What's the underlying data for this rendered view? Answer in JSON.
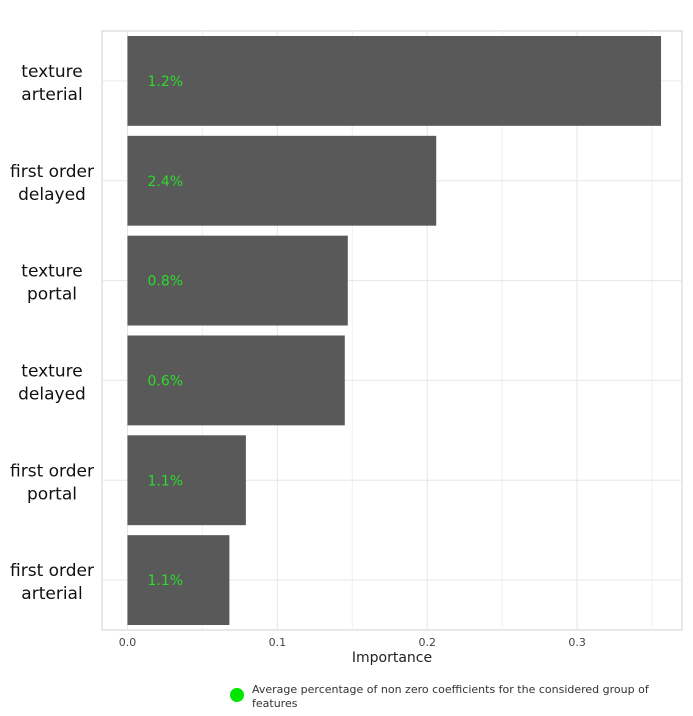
{
  "chart_data": {
    "type": "bar",
    "orientation": "horizontal",
    "categories": [
      "texture arterial",
      "first order delayed",
      "texture portal",
      "texture delayed",
      "first order portal",
      "first order arterial"
    ],
    "category_lines": [
      [
        "texture",
        "arterial"
      ],
      [
        "first order",
        "delayed"
      ],
      [
        "texture",
        "portal"
      ],
      [
        "texture",
        "delayed"
      ],
      [
        "first order",
        "portal"
      ],
      [
        "first order",
        "arterial"
      ]
    ],
    "values": [
      0.356,
      0.206,
      0.147,
      0.145,
      0.079,
      0.068
    ],
    "data_labels": [
      "1.2%",
      "2.4%",
      "0.8%",
      "0.6%",
      "1.1%",
      "1.1%"
    ],
    "xlabel": "Importance",
    "xlim": [
      -0.017,
      0.37
    ],
    "x_ticks": [
      0.0,
      0.1,
      0.2,
      0.3
    ],
    "x_tick_labels": [
      "0.0",
      "0.1",
      "0.2",
      "0.3"
    ],
    "grid": true,
    "legend": {
      "text": "Average percentage of non zero coefficients for the considered group of features",
      "placement": "bottom"
    },
    "colors": {
      "bar": "#595959",
      "label": "#2bdc2b",
      "legend_marker": "#00e600",
      "grid": "#e6e6e6",
      "frame": "#d0d0d0"
    }
  }
}
